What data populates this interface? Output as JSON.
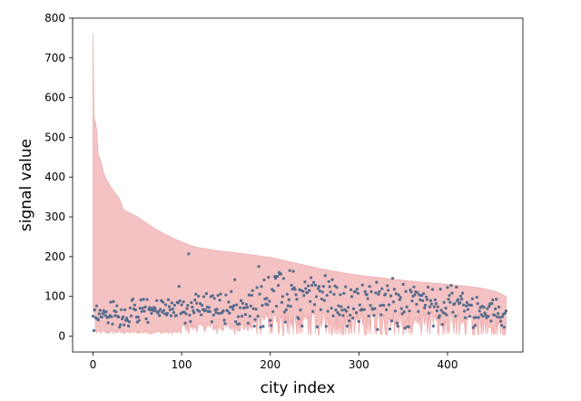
{
  "chart_data": {
    "type": "scatter",
    "xlabel": "city index",
    "ylabel": "signal value",
    "xlim": [
      -23,
      485
    ],
    "ylim": [
      -40,
      800
    ],
    "xticks": [
      0,
      100,
      200,
      300,
      400
    ],
    "yticks": [
      0,
      100,
      200,
      300,
      400,
      500,
      600,
      700,
      800
    ],
    "grid": false,
    "legend": "none",
    "n_points": 467,
    "colors": {
      "band_fill": "#f4c2c2",
      "band_line": "#eeaaaa",
      "points": "#556b8d"
    },
    "band_upper": [
      [
        0,
        762
      ],
      [
        1,
        550
      ],
      [
        2,
        545
      ],
      [
        3,
        535
      ],
      [
        4,
        520
      ],
      [
        6,
        455
      ],
      [
        8,
        445
      ],
      [
        10,
        430
      ],
      [
        12,
        410
      ],
      [
        15,
        395
      ],
      [
        20,
        375
      ],
      [
        25,
        360
      ],
      [
        30,
        345
      ],
      [
        33,
        325
      ],
      [
        35,
        317
      ],
      [
        40,
        312
      ],
      [
        50,
        300
      ],
      [
        60,
        285
      ],
      [
        70,
        270
      ],
      [
        80,
        258
      ],
      [
        90,
        247
      ],
      [
        100,
        237
      ],
      [
        110,
        228
      ],
      [
        120,
        222
      ],
      [
        140,
        215
      ],
      [
        160,
        210
      ],
      [
        180,
        204
      ],
      [
        200,
        198
      ],
      [
        220,
        188
      ],
      [
        240,
        178
      ],
      [
        260,
        168
      ],
      [
        280,
        160
      ],
      [
        300,
        153
      ],
      [
        320,
        148
      ],
      [
        340,
        143
      ],
      [
        360,
        138
      ],
      [
        380,
        134
      ],
      [
        400,
        130
      ],
      [
        420,
        126
      ],
      [
        440,
        120
      ],
      [
        455,
        112
      ],
      [
        466,
        100
      ]
    ],
    "scatter_ranges": [
      [
        0,
        45,
        20,
        90
      ],
      [
        45,
        100,
        30,
        95
      ],
      [
        100,
        180,
        30,
        110
      ],
      [
        180,
        260,
        20,
        160
      ],
      [
        260,
        340,
        15,
        150
      ],
      [
        340,
        420,
        20,
        130
      ],
      [
        420,
        467,
        20,
        100
      ]
    ],
    "scatter_highlights": [
      [
        1,
        14
      ],
      [
        108,
        207
      ],
      [
        187,
        175
      ],
      [
        198,
        148
      ],
      [
        210,
        160
      ],
      [
        215,
        145
      ],
      [
        222,
        165
      ],
      [
        226,
        163
      ],
      [
        249,
        135
      ],
      [
        262,
        152
      ],
      [
        270,
        142
      ],
      [
        273,
        126
      ],
      [
        285,
        124
      ],
      [
        312,
        125
      ],
      [
        340,
        118
      ],
      [
        350,
        130
      ],
      [
        358,
        116
      ],
      [
        366,
        110
      ],
      [
        392,
        118
      ],
      [
        405,
        108
      ],
      [
        97,
        125
      ],
      [
        156,
        112
      ],
      [
        160,
        142
      ]
    ],
    "dips": [
      [
        108,
        6
      ],
      [
        140,
        5
      ],
      [
        160,
        4
      ],
      [
        185,
        3
      ],
      [
        200,
        5
      ],
      [
        215,
        2
      ],
      [
        230,
        4
      ],
      [
        245,
        2
      ],
      [
        255,
        3
      ],
      [
        270,
        5
      ],
      [
        280,
        3
      ],
      [
        290,
        6
      ],
      [
        300,
        4
      ],
      [
        310,
        5
      ],
      [
        320,
        3
      ],
      [
        330,
        5
      ],
      [
        340,
        4
      ],
      [
        350,
        2
      ],
      [
        360,
        5
      ],
      [
        370,
        3
      ],
      [
        380,
        4
      ],
      [
        390,
        2
      ],
      [
        400,
        5
      ],
      [
        410,
        3
      ],
      [
        420,
        4
      ],
      [
        430,
        2
      ],
      [
        440,
        5
      ],
      [
        450,
        3
      ],
      [
        460,
        4
      ]
    ]
  }
}
